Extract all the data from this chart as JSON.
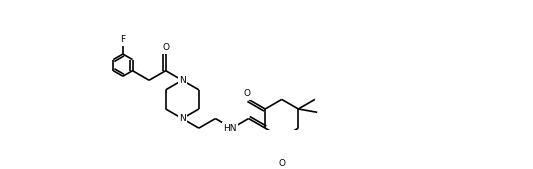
{
  "background_color": "#ffffff",
  "line_color": "#000000",
  "bond_lw": 1.2,
  "figsize": [
    5.33,
    1.69
  ],
  "dpi": 100,
  "xlim": [
    0,
    10.5
  ],
  "ylim": [
    0,
    3.5
  ]
}
